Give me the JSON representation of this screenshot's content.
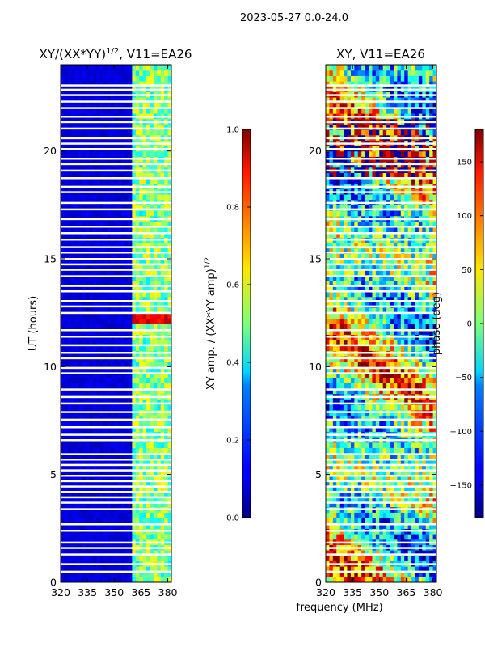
{
  "suptitle": "2023-05-27 0.0-24.0",
  "chart_data": [
    {
      "type": "heatmap",
      "title": "XY/(XX*YY)",
      "title_exponent": "1/2",
      "title_suffix": ", V11=EA26",
      "xlabel": "frequency (MHz)",
      "ylabel": "UT (hours)",
      "xlim": [
        320,
        382
      ],
      "ylim": [
        0,
        24
      ],
      "xticks": [
        320,
        335,
        350,
        365,
        380
      ],
      "yticks": [
        0,
        5,
        10,
        15,
        20
      ],
      "colorbar": {
        "label": "XY amp. / (XX*YY amp)",
        "label_exponent": "1/2",
        "range": [
          0.0,
          1.0
        ],
        "ticks": [
          "0.0",
          "0.2",
          "0.4",
          "0.6",
          "0.8",
          "1.0"
        ],
        "colormap": "jet"
      },
      "note": "mostly low values (~0.05-0.1) below 360 MHz; higher values (~0.3-0.6) in 360-382 MHz channels; gaps are flagged times"
    },
    {
      "type": "heatmap",
      "title": "XY, V11=EA26",
      "xlabel": "frequency (MHz)",
      "ylabel": "",
      "xlim": [
        320,
        382
      ],
      "ylim": [
        0,
        24
      ],
      "xticks": [
        320,
        335,
        350,
        365,
        380
      ],
      "yticks": [
        0,
        5,
        10,
        15,
        20
      ],
      "colorbar": {
        "label": "phase (deg)",
        "range": [
          -180,
          180
        ],
        "ticks": [
          "−150",
          "−100",
          "−50",
          "0",
          "50",
          "100",
          "150"
        ],
        "colormap": "jet"
      },
      "note": "phase varies across full range with structured bands"
    }
  ],
  "flag_gaps_hours": [
    0.5,
    0.85,
    1.3,
    1.6,
    1.85,
    2.4,
    2.7,
    3.4,
    3.7,
    3.95,
    4.2,
    4.45,
    4.7,
    4.95,
    5.2,
    5.45,
    5.7,
    5.95,
    6.6,
    6.85,
    7.2,
    7.55,
    7.9,
    8.3,
    8.6,
    8.95,
    9.7,
    9.95,
    10.4,
    10.65,
    11.0,
    11.4,
    11.7,
    12.5,
    12.8,
    13.05,
    13.5,
    13.75,
    14.2,
    14.5,
    14.75,
    15.0,
    15.3,
    15.55,
    15.9,
    16.2,
    16.5,
    16.85,
    17.3,
    17.6,
    18.1,
    18.35,
    18.75,
    19.1,
    19.4,
    19.65,
    20.1,
    20.35,
    20.6,
    21.05,
    21.35,
    21.6,
    22.0,
    22.3,
    22.6,
    22.85,
    23.05
  ]
}
